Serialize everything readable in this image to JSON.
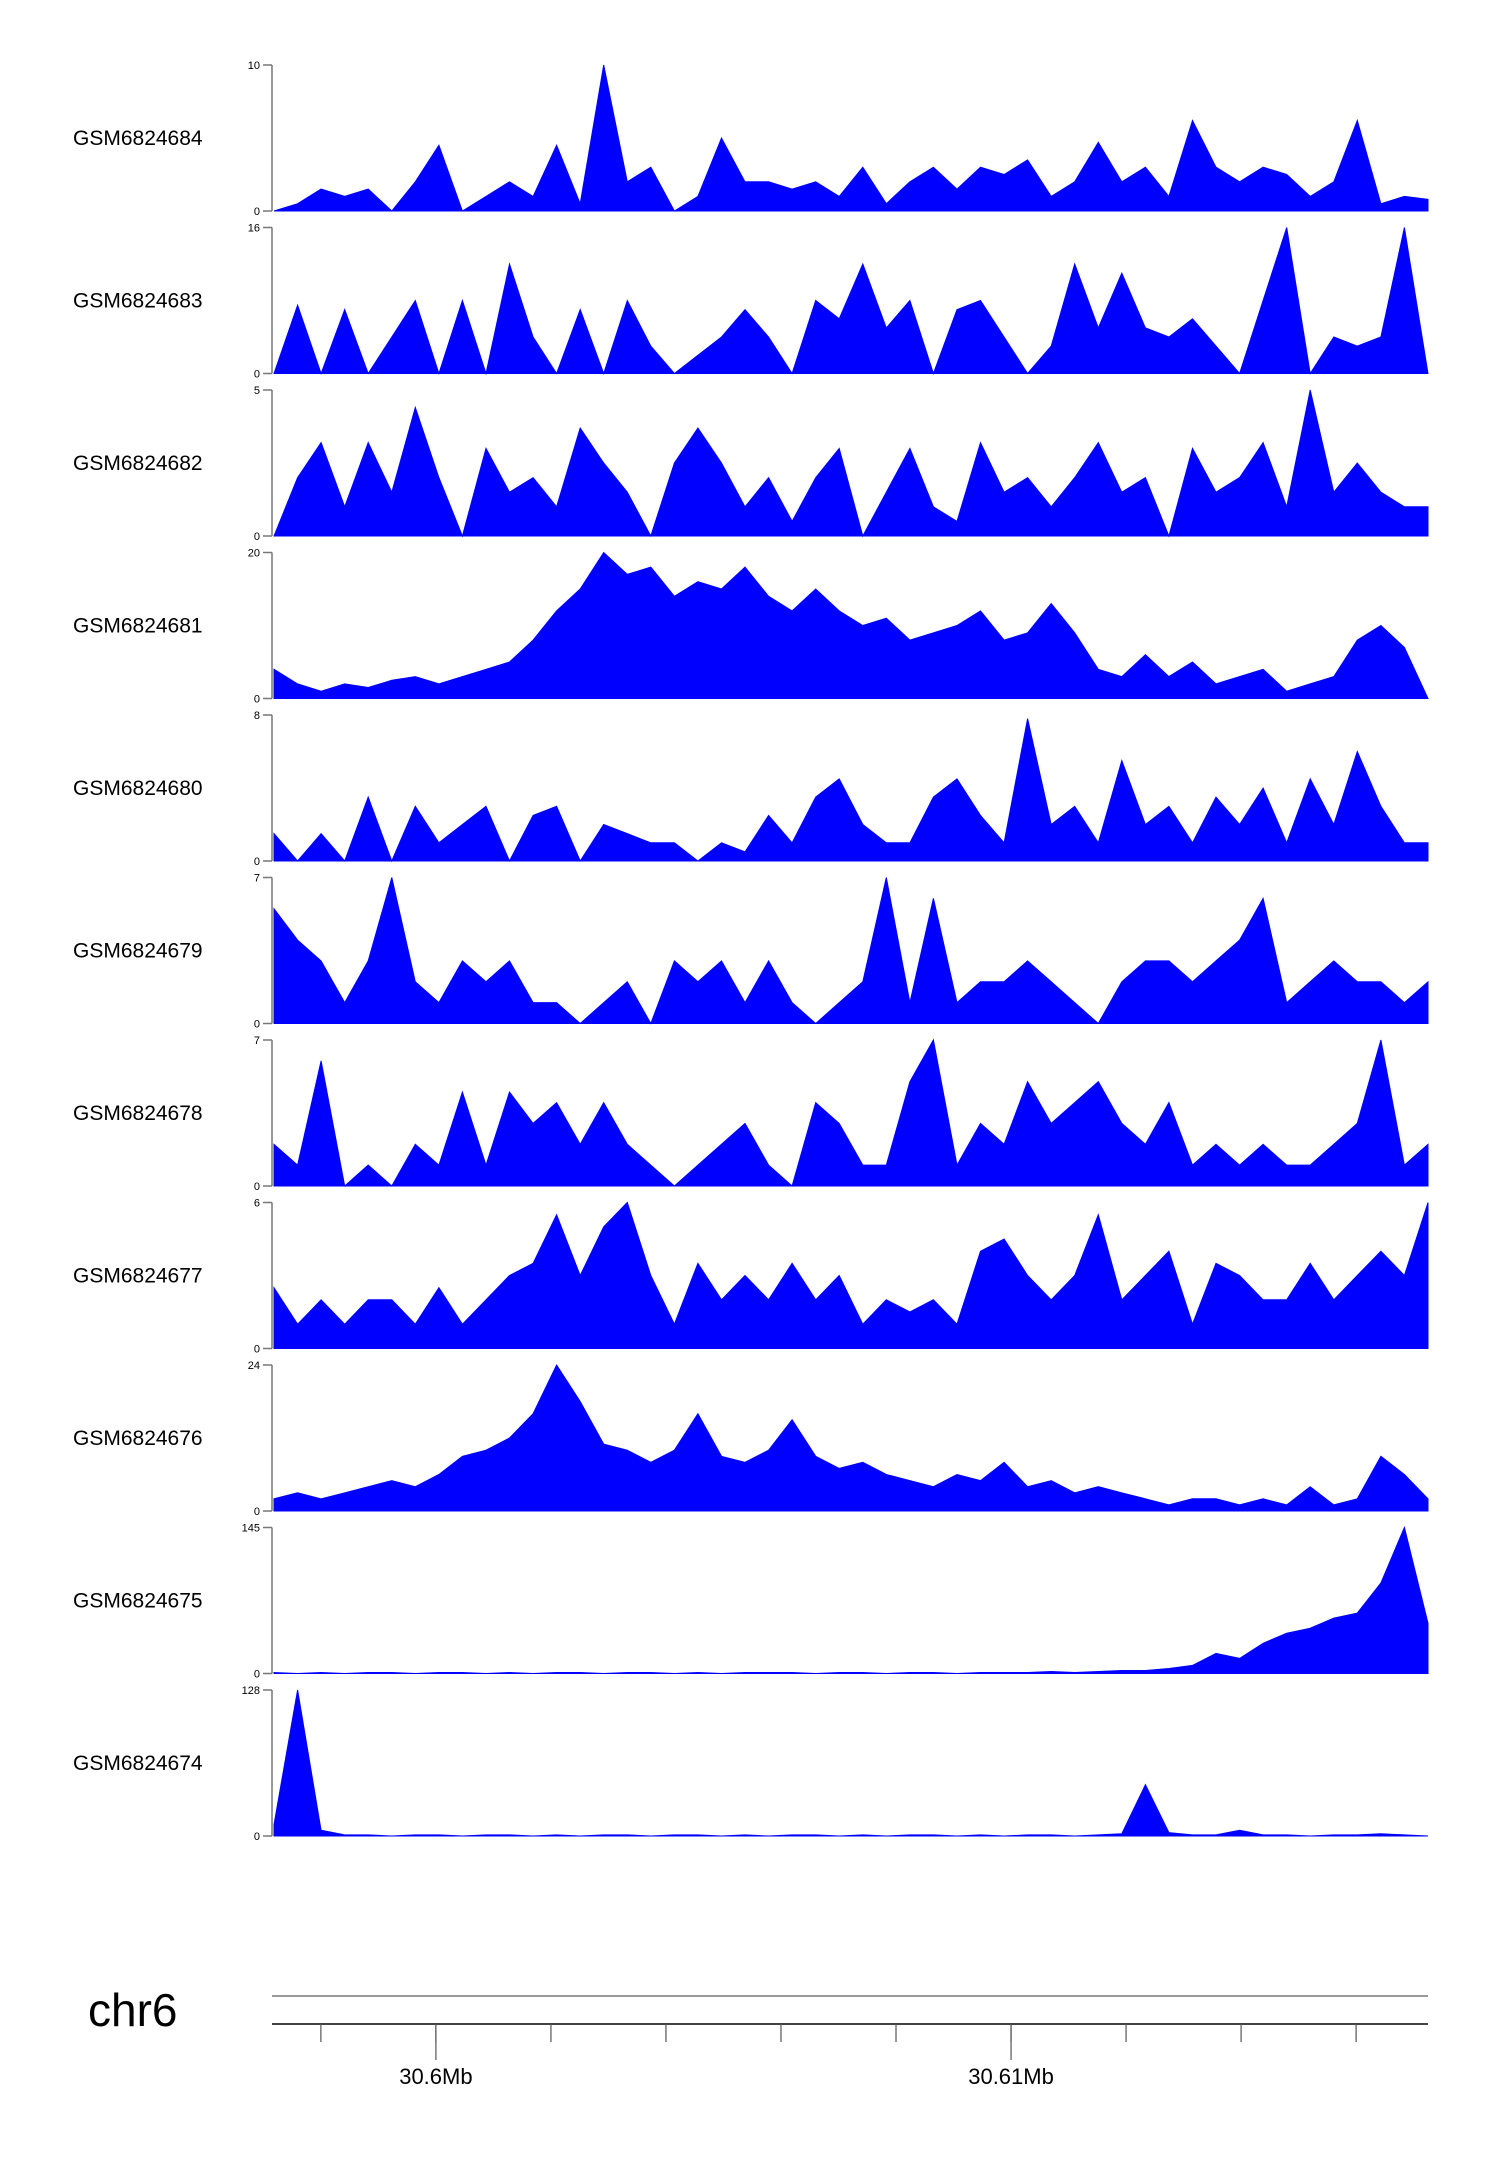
{
  "chart_data": {
    "type": "area",
    "chromosome": "chr6",
    "x_range_mb": [
      30.59715,
      30.61725
    ],
    "x_ticks_mb": [
      30.598,
      30.6,
      30.602,
      30.604,
      30.606,
      30.608,
      30.61,
      30.612,
      30.614,
      30.616
    ],
    "x_tick_labels": [
      {
        "pos": 30.6,
        "label": "30.6Mb"
      },
      {
        "pos": 30.61,
        "label": "30.61Mb"
      }
    ],
    "fill_color": "#0000ff",
    "tracks": [
      {
        "name": "GSM6824684",
        "ymax": 10,
        "ymin": 0,
        "ymax_label": "10",
        "ymin_label": "0",
        "values": [
          0,
          0.5,
          1.5,
          1,
          1.5,
          0,
          2,
          4.5,
          0,
          1,
          2,
          1,
          4.5,
          0.5,
          10,
          2,
          3,
          0,
          1,
          5,
          2,
          2,
          1.5,
          2,
          1,
          3,
          0.5,
          2,
          3,
          1.5,
          3,
          2.5,
          3.5,
          1,
          2,
          4.7,
          2,
          3,
          1,
          6.2,
          3,
          2,
          3,
          2.5,
          1,
          2,
          6.2,
          0.5,
          1,
          0.8
        ]
      },
      {
        "name": "GSM6824683",
        "ymax": 16,
        "ymin": 0,
        "ymax_label": "16",
        "ymin_label": "0",
        "values": [
          0,
          7.5,
          0,
          7,
          0,
          4,
          8,
          0,
          8,
          0,
          12,
          4,
          0,
          7,
          0,
          8,
          3,
          0,
          2,
          4,
          7,
          4,
          0,
          8,
          6,
          12,
          5,
          8,
          0,
          7,
          8,
          4,
          0,
          3,
          12,
          5,
          11,
          5,
          4,
          6,
          3,
          0,
          8,
          16,
          0,
          4,
          3,
          4,
          16,
          0
        ]
      },
      {
        "name": "GSM6824682",
        "ymax": 5,
        "ymin": 0,
        "ymax_label": "5",
        "ymin_label": "0",
        "values": [
          0,
          2,
          3.2,
          1,
          3.2,
          1.5,
          4.4,
          2,
          0,
          3,
          1.5,
          2,
          1,
          3.7,
          2.5,
          1.5,
          0,
          2.5,
          3.7,
          2.5,
          1,
          2,
          0.5,
          2,
          3,
          0,
          1.5,
          3,
          1,
          0.5,
          3.2,
          1.5,
          2,
          1,
          2,
          3.2,
          1.5,
          2,
          0,
          3,
          1.5,
          2,
          3.2,
          1,
          5,
          1.5,
          2.5,
          1.5,
          1,
          1
        ]
      },
      {
        "name": "GSM6824681",
        "ymax": 20,
        "ymin": 0,
        "ymax_label": "20",
        "ymin_label": "0",
        "values": [
          4,
          2,
          1,
          2,
          1.5,
          2.5,
          3,
          2,
          3,
          4,
          5,
          8,
          12,
          15,
          20,
          17,
          18,
          14,
          16,
          15,
          18,
          14,
          12,
          15,
          12,
          10,
          11,
          8,
          9,
          10,
          12,
          8,
          9,
          13,
          9,
          4,
          3,
          6,
          3,
          5,
          2,
          3,
          4,
          1,
          2,
          3,
          8,
          10,
          7,
          0
        ]
      },
      {
        "name": "GSM6824680",
        "ymax": 8,
        "ymin": 0,
        "ymax_label": "8",
        "ymin_label": "0",
        "values": [
          1.5,
          0,
          1.5,
          0,
          3.5,
          0,
          3,
          1,
          2,
          3,
          0,
          2.5,
          3,
          0,
          2,
          1.5,
          1,
          1,
          0,
          1,
          0.5,
          2.5,
          1,
          3.5,
          4.5,
          2,
          1,
          1,
          3.5,
          4.5,
          2.5,
          1,
          7.8,
          2,
          3,
          1,
          5.5,
          2,
          3,
          1,
          3.5,
          2,
          4,
          1,
          4.5,
          2,
          6,
          3,
          1,
          1
        ]
      },
      {
        "name": "GSM6824679",
        "ymax": 7,
        "ymin": 0,
        "ymax_label": "7",
        "ymin_label": "0",
        "values": [
          5.5,
          4,
          3,
          1,
          3,
          7,
          2,
          1,
          3,
          2,
          3,
          1,
          1,
          0,
          1,
          2,
          0,
          3,
          2,
          3,
          1,
          3,
          1,
          0,
          1,
          2,
          7,
          1,
          6,
          1,
          2,
          2,
          3,
          2,
          1,
          0,
          2,
          3,
          3,
          2,
          3,
          4,
          6,
          1,
          2,
          3,
          2,
          2,
          1,
          2
        ]
      },
      {
        "name": "GSM6824678",
        "ymax": 7,
        "ymin": 0,
        "ymax_label": "7",
        "ymin_label": "0",
        "values": [
          2,
          1,
          6,
          0,
          1,
          0,
          2,
          1,
          4.5,
          1,
          4.5,
          3,
          4,
          2,
          4,
          2,
          1,
          0,
          1,
          2,
          3,
          1,
          0,
          4,
          3,
          1,
          1,
          5,
          7,
          1,
          3,
          2,
          5,
          3,
          4,
          5,
          3,
          2,
          4,
          1,
          2,
          1,
          2,
          1,
          1,
          2,
          3,
          7,
          1,
          2
        ]
      },
      {
        "name": "GSM6824677",
        "ymax": 6,
        "ymin": 0,
        "ymax_label": "6",
        "ymin_label": "0",
        "values": [
          2.5,
          1,
          2,
          1,
          2,
          2,
          1,
          2.5,
          1,
          2,
          3,
          3.5,
          5.5,
          3,
          5,
          6,
          3,
          1,
          3.5,
          2,
          3,
          2,
          3.5,
          2,
          3,
          1,
          2,
          1.5,
          2,
          1,
          4,
          4.5,
          3,
          2,
          3,
          5.5,
          2,
          3,
          4,
          1,
          3.5,
          3,
          2,
          2,
          3.5,
          2,
          3,
          4,
          3,
          6
        ]
      },
      {
        "name": "GSM6824676",
        "ymax": 24,
        "ymin": 0,
        "ymax_label": "24",
        "ymin_label": "0",
        "values": [
          2,
          3,
          2,
          3,
          4,
          5,
          4,
          6,
          9,
          10,
          12,
          16,
          24,
          18,
          11,
          10,
          8,
          10,
          16,
          9,
          8,
          10,
          15,
          9,
          7,
          8,
          6,
          5,
          4,
          6,
          5,
          8,
          4,
          5,
          3,
          4,
          3,
          2,
          1,
          2,
          2,
          1,
          2,
          1,
          4,
          1,
          2,
          9,
          6,
          2
        ]
      },
      {
        "name": "GSM6824675",
        "ymax": 145,
        "ymin": 0,
        "ymax_label": "145",
        "ymin_label": "0",
        "values": [
          1,
          0,
          1,
          0,
          1,
          1,
          0,
          1,
          1,
          0,
          1,
          0,
          1,
          1,
          0,
          1,
          1,
          0,
          1,
          0,
          1,
          1,
          1,
          0,
          1,
          1,
          0,
          1,
          1,
          0,
          1,
          1,
          1,
          2,
          1,
          2,
          3,
          3,
          5,
          8,
          20,
          15,
          30,
          40,
          45,
          55,
          60,
          90,
          145,
          50
        ]
      },
      {
        "name": "GSM6824674",
        "ymax": 128,
        "ymin": 0,
        "ymax_label": "128",
        "ymin_label": "0",
        "values": [
          10,
          128,
          5,
          1,
          1,
          0,
          1,
          1,
          0,
          1,
          1,
          0,
          1,
          0,
          1,
          1,
          0,
          1,
          1,
          0,
          1,
          0,
          1,
          1,
          0,
          1,
          0,
          1,
          1,
          0,
          1,
          0,
          1,
          1,
          0,
          1,
          2,
          45,
          3,
          1,
          1,
          5,
          1,
          1,
          0,
          1,
          1,
          2,
          1,
          0
        ]
      }
    ]
  }
}
